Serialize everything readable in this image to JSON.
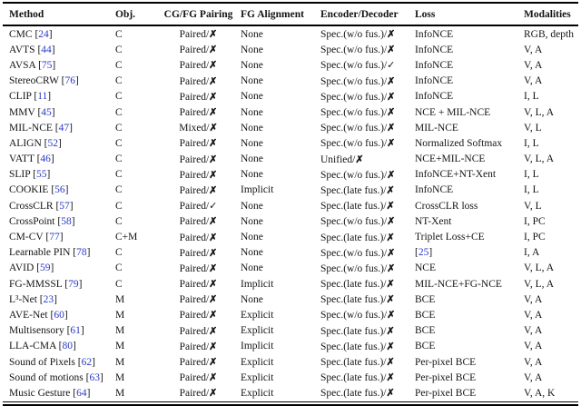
{
  "table": {
    "columns": [
      "Method",
      "Obj.",
      "CG/FG Pairing",
      "FG Alignment",
      "Encoder/Decoder",
      "Loss",
      "Modalities"
    ],
    "link_color": "#2a3ac6",
    "marks": {
      "cross": "✗",
      "check": "✓"
    },
    "rows": [
      {
        "method": "CMC",
        "ref": "24",
        "obj": "C",
        "pairing": "Paired",
        "pairing_mark": "✗",
        "fg_alignment": "None",
        "encoder": "Spec.(w/o fus.)",
        "encoder_mark": "✗",
        "loss": "InfoNCE",
        "modalities": "RGB, depth"
      },
      {
        "method": "AVTS",
        "ref": "44",
        "obj": "C",
        "pairing": "Paired",
        "pairing_mark": "✗",
        "fg_alignment": "None",
        "encoder": "Spec.(w/o fus.)",
        "encoder_mark": "✗",
        "loss": "InfoNCE",
        "modalities": "V, A"
      },
      {
        "method": "AVSA",
        "ref": "75",
        "obj": "C",
        "pairing": "Paired",
        "pairing_mark": "✗",
        "fg_alignment": "None",
        "encoder": "Spec.(w/o fus.)",
        "encoder_mark": "✓",
        "loss": "InfoNCE",
        "modalities": "V, A"
      },
      {
        "method": "StereoCRW",
        "ref": "76",
        "obj": "C",
        "pairing": "Paired",
        "pairing_mark": "✗",
        "fg_alignment": "None",
        "encoder": "Spec.(w/o fus.)",
        "encoder_mark": "✗",
        "loss": "InfoNCE",
        "modalities": "V, A"
      },
      {
        "method": "CLIP",
        "ref": "11",
        "obj": "C",
        "pairing": "Paired",
        "pairing_mark": "✗",
        "fg_alignment": "None",
        "encoder": "Spec.(w/o fus.)",
        "encoder_mark": "✗",
        "loss": "InfoNCE",
        "modalities": "I, L"
      },
      {
        "method": "MMV",
        "ref": "45",
        "obj": "C",
        "pairing": "Paired",
        "pairing_mark": "✗",
        "fg_alignment": "None",
        "encoder": "Spec.(w/o fus.)",
        "encoder_mark": "✗",
        "loss": "NCE + MIL-NCE",
        "modalities": "V, L, A"
      },
      {
        "method": "MIL-NCE",
        "ref": "47",
        "obj": "C",
        "pairing": "Mixed",
        "pairing_mark": "✗",
        "fg_alignment": "None",
        "encoder": "Spec.(w/o fus.)",
        "encoder_mark": "✗",
        "loss": "MIL-NCE",
        "modalities": "V, L"
      },
      {
        "method": "ALIGN",
        "ref": "52",
        "obj": "C",
        "pairing": "Paired",
        "pairing_mark": "✗",
        "fg_alignment": "None",
        "encoder": "Spec.(w/o fus.)",
        "encoder_mark": "✗",
        "loss": "Normalized Softmax",
        "modalities": "I, L"
      },
      {
        "method": "VATT",
        "ref": "46",
        "obj": "C",
        "pairing": "Paired",
        "pairing_mark": "✗",
        "fg_alignment": "None",
        "encoder": "Unified",
        "encoder_mark": "✗",
        "loss": "NCE+MIL-NCE",
        "modalities": "V, L, A"
      },
      {
        "method": "SLIP",
        "ref": "55",
        "obj": "C",
        "pairing": "Paired",
        "pairing_mark": "✗",
        "fg_alignment": "None",
        "encoder": "Spec.(w/o fus.)",
        "encoder_mark": "✗",
        "loss": "InfoNCE+NT-Xent",
        "modalities": "I, L"
      },
      {
        "method": "COOKIE",
        "ref": "56",
        "obj": "C",
        "pairing": "Paired",
        "pairing_mark": "✗",
        "fg_alignment": "Implicit",
        "encoder": "Spec.(late fus.)",
        "encoder_mark": "✗",
        "loss": "InfoNCE",
        "modalities": "I, L"
      },
      {
        "method": "CrossCLR",
        "ref": "57",
        "obj": "C",
        "pairing": "Paired",
        "pairing_mark": "✓",
        "fg_alignment": "None",
        "encoder": "Spec.(late fus.)",
        "encoder_mark": "✗",
        "loss": "CrossCLR loss",
        "modalities": "V, L"
      },
      {
        "method": "CrossPoint",
        "ref": "58",
        "obj": "C",
        "pairing": "Paired",
        "pairing_mark": "✗",
        "fg_alignment": "None",
        "encoder": "Spec.(w/o fus.)",
        "encoder_mark": "✗",
        "loss": "NT-Xent",
        "modalities": "I, PC"
      },
      {
        "method": "CM-CV",
        "ref": "77",
        "obj": "C+M",
        "pairing": "Paired",
        "pairing_mark": "✗",
        "fg_alignment": "None",
        "encoder": "Spec.(late fus.)",
        "encoder_mark": "✗",
        "loss": "Triplet Loss+CE",
        "modalities": "I, PC"
      },
      {
        "method": "Learnable PIN",
        "ref": "78",
        "obj": "C",
        "pairing": "Paired",
        "pairing_mark": "✗",
        "fg_alignment": "None",
        "encoder": "Spec.(w/o fus.)",
        "encoder_mark": "✗",
        "loss": "",
        "loss_ref": "25",
        "modalities": "I, A"
      },
      {
        "method": "AVID",
        "ref": "59",
        "obj": "C",
        "pairing": "Paired",
        "pairing_mark": "✗",
        "fg_alignment": "None",
        "encoder": "Spec.(w/o fus.)",
        "encoder_mark": "✗",
        "loss": "NCE",
        "modalities": "V, L, A"
      },
      {
        "method": "FG-MMSSL",
        "ref": "79",
        "obj": "C",
        "pairing": "Paired",
        "pairing_mark": "✗",
        "fg_alignment": "Implicit",
        "encoder": "Spec.(late fus.)",
        "encoder_mark": "✗",
        "loss": "MIL-NCE+FG-NCE",
        "modalities": "V, L, A"
      },
      {
        "method": "L³-Net",
        "ref": "23",
        "obj": "M",
        "pairing": "Paired",
        "pairing_mark": "✗",
        "fg_alignment": "None",
        "encoder": "Spec.(late fus.)",
        "encoder_mark": "✗",
        "loss": "BCE",
        "modalities": "V, A"
      },
      {
        "method": "AVE-Net",
        "ref": "60",
        "obj": "M",
        "pairing": "Paired",
        "pairing_mark": "✗",
        "fg_alignment": "Explicit",
        "encoder": "Spec.(w/o fus.)",
        "encoder_mark": "✗",
        "loss": "BCE",
        "modalities": "V, A"
      },
      {
        "method": "Multisensory",
        "ref": "61",
        "obj": "M",
        "pairing": "Paired",
        "pairing_mark": "✗",
        "fg_alignment": "Explicit",
        "encoder": "Spec.(late fus.)",
        "encoder_mark": "✗",
        "loss": "BCE",
        "modalities": "V, A"
      },
      {
        "method": "LLA-CMA",
        "ref": "80",
        "obj": "M",
        "pairing": "Paired",
        "pairing_mark": "✗",
        "fg_alignment": "Implicit",
        "encoder": "Spec.(late fus.)",
        "encoder_mark": "✗",
        "loss": "BCE",
        "modalities": "V, A"
      },
      {
        "method": "Sound of Pixels",
        "ref": "62",
        "obj": "M",
        "pairing": "Paired",
        "pairing_mark": "✗",
        "fg_alignment": "Explicit",
        "encoder": "Spec.(late fus.)",
        "encoder_mark": "✗",
        "loss": "Per-pixel BCE",
        "modalities": "V, A"
      },
      {
        "method": "Sound of motions",
        "ref": "63",
        "obj": "M",
        "pairing": "Paired",
        "pairing_mark": "✗",
        "fg_alignment": "Explicit",
        "encoder": "Spec.(late fus.)",
        "encoder_mark": "✗",
        "loss": "Per-pixel BCE",
        "modalities": "V, A"
      },
      {
        "method": "Music Gesture",
        "ref": "64",
        "obj": "M",
        "pairing": "Paired",
        "pairing_mark": "✗",
        "fg_alignment": "Explicit",
        "encoder": "Spec.(late fus.)",
        "encoder_mark": "✗",
        "loss": "Per-pixel BCE",
        "modalities": "V, A, K"
      }
    ]
  }
}
